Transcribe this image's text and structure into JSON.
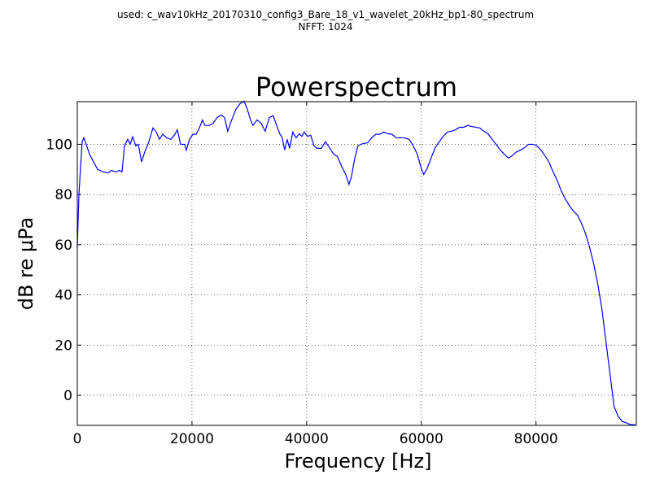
{
  "chart_data": {
    "type": "line",
    "suptitle": [
      "used: c_wav10kHz_20170310_config3_Bare_18_v1_wavelet_20kHz_bp1-80_spectrum",
      "NFFT: 1024"
    ],
    "title": "Powerspectrum",
    "x_label": "Frequency [Hz]",
    "y_label": "dB re μPa",
    "xlim": [
      0,
      97500
    ],
    "ylim": [
      -12,
      117
    ],
    "xticks": [
      0,
      20000,
      40000,
      60000,
      80000
    ],
    "yticks": [
      0,
      20,
      40,
      60,
      80,
      100
    ],
    "grid": true,
    "color": "#0000ff",
    "x": [
      0,
      284,
      567,
      851,
      1135,
      1560,
      2128,
      2837,
      3546,
      4539,
      5390,
      5957,
      6667,
      7376,
      7801,
      8227,
      8794,
      9220,
      9645,
      10213,
      10638,
      11206,
      11773,
      12482,
      13191,
      13759,
      14326,
      14894,
      15603,
      16312,
      17021,
      17447,
      18014,
      18723,
      19007,
      19574,
      20142,
      20709,
      21277,
      21844,
      22270,
      22979,
      23688,
      24397,
      25106,
      25674,
      26241,
      26809,
      27660,
      28369,
      29078,
      29645,
      30213,
      30638,
      31348,
      32057,
      32766,
      33475,
      34184,
      34752,
      35319,
      35745,
      36170,
      36596,
      37021,
      37589,
      38156,
      38723,
      39149,
      39574,
      40142,
      40709,
      41277,
      41844,
      42553,
      43262,
      43972,
      44681,
      45390,
      46099,
      46809,
      47376,
      47801,
      48369,
      48936,
      49787,
      50638,
      51348,
      52057,
      52766,
      53475,
      54184,
      54894,
      55603,
      56312,
      57021,
      57872,
      58582,
      59291,
      60000,
      60426,
      60993,
      61702,
      62411,
      63121,
      63830,
      64539,
      65248,
      65957,
      66667,
      67376,
      68085,
      68794,
      69504,
      70213,
      70922,
      71631,
      72340,
      73050,
      73759,
      74468,
      75177,
      75887,
      76596,
      77305,
      78014,
      78723,
      79433,
      80142,
      80851,
      81560,
      82270,
      82979,
      83688,
      84397,
      85106,
      85816,
      86525,
      87234,
      87943,
      88652,
      89362,
      90071,
      90780,
      91489,
      92199,
      92908,
      93617,
      94326,
      95035,
      95745,
      96454,
      97305
    ],
    "values": [
      58.8,
      80,
      91,
      101,
      102.6,
      100,
      96,
      93,
      90,
      89,
      88.6,
      89.6,
      89,
      89.6,
      89,
      99.4,
      102,
      100,
      103,
      99.4,
      100,
      93,
      97,
      101,
      106.5,
      105,
      102,
      104,
      102.6,
      102,
      104,
      105.8,
      100,
      100,
      97.7,
      102,
      104,
      104,
      106.5,
      109.7,
      107.5,
      107.5,
      108.4,
      110.7,
      111.7,
      110.7,
      105.2,
      109,
      114,
      116.2,
      117.2,
      114,
      109.7,
      107.5,
      109.7,
      108.4,
      105.2,
      110.7,
      111.4,
      107.5,
      104.2,
      102.6,
      97.7,
      102,
      98.4,
      104.9,
      102.6,
      104.2,
      103.2,
      104.9,
      103.2,
      103.6,
      99.4,
      98.4,
      98.4,
      101,
      98.7,
      96.1,
      95.1,
      91.2,
      88,
      84,
      87,
      94.2,
      99.4,
      100.3,
      100.6,
      102.6,
      104,
      104,
      104.9,
      104.2,
      104,
      102.6,
      102.6,
      102.6,
      102,
      99.4,
      96.1,
      90.3,
      88,
      90.3,
      94.5,
      98.7,
      101,
      103.2,
      104.9,
      105.2,
      105.8,
      106.8,
      106.8,
      107.5,
      107.1,
      106.8,
      106.5,
      105.2,
      104.2,
      102,
      100,
      97.7,
      96.1,
      94.5,
      95.5,
      97,
      97.7,
      98.7,
      100,
      100,
      99.4,
      97.7,
      95.5,
      92.9,
      89,
      85.7,
      81.5,
      78.2,
      75.6,
      73.4,
      71.8,
      68.5,
      64.3,
      58.8,
      52.3,
      44.2,
      34.4,
      21.4,
      8.4,
      -4.5,
      -8.4,
      -10.4,
      -11,
      -11.7,
      -11.7
    ]
  }
}
